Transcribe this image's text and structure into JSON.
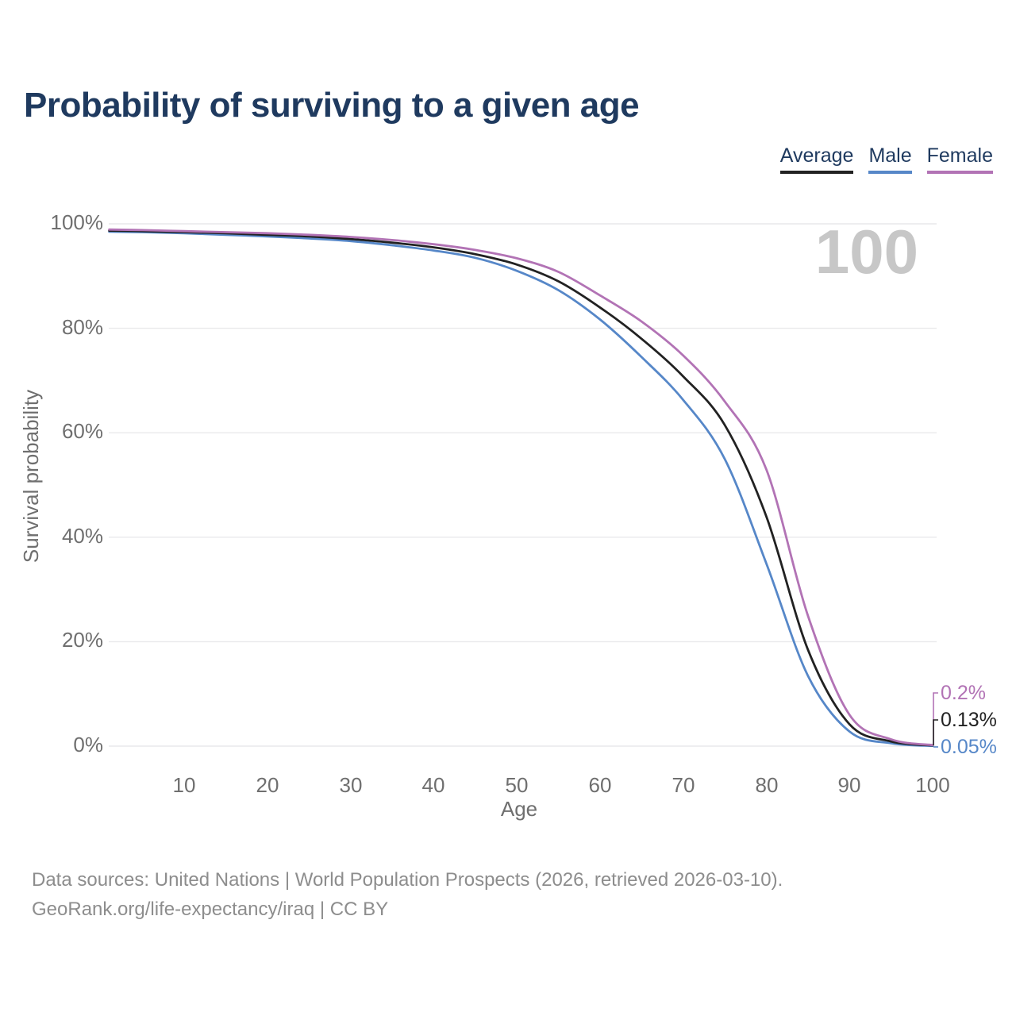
{
  "watermark": "100",
  "footer": {
    "line1": "Data sources: United Nations | World Population Prospects (2026, retrieved 2026-03-10).",
    "line2": "GeoRank.org/life-expectancy/iraq | CC BY"
  },
  "chart_data": {
    "type": "line",
    "title": "Probability of surviving to a given age",
    "xlabel": "Age",
    "ylabel": "Survival probability",
    "xlim": [
      1,
      100
    ],
    "ylim": [
      0,
      100
    ],
    "grid": true,
    "legend_position": "top-right",
    "x": [
      1,
      5,
      10,
      15,
      20,
      25,
      30,
      35,
      40,
      45,
      50,
      55,
      60,
      65,
      70,
      75,
      80,
      85,
      90,
      95,
      100
    ],
    "series": [
      {
        "name": "Average",
        "color": "#222222",
        "end_label": "0.13%",
        "values": [
          98.7,
          98.6,
          98.4,
          98.2,
          97.9,
          97.6,
          97.1,
          96.4,
          95.5,
          94.2,
          92.2,
          89.0,
          84.0,
          78.0,
          70.8,
          61.5,
          44.0,
          18.5,
          4.2,
          0.9,
          0.13
        ]
      },
      {
        "name": "Male",
        "color": "#5687c8",
        "end_label": "0.05%",
        "values": [
          98.5,
          98.4,
          98.2,
          97.9,
          97.6,
          97.2,
          96.7,
          95.9,
          94.9,
          93.5,
          91.0,
          87.3,
          81.7,
          74.5,
          66.3,
          55.0,
          35.0,
          13.5,
          2.8,
          0.55,
          0.05
        ]
      },
      {
        "name": "Female",
        "color": "#b273b5",
        "end_label": "0.2%",
        "values": [
          98.9,
          98.8,
          98.6,
          98.4,
          98.2,
          97.9,
          97.5,
          96.9,
          96.1,
          95.0,
          93.4,
          90.8,
          86.3,
          81.3,
          74.8,
          66.0,
          53.0,
          25.0,
          6.0,
          1.3,
          0.2
        ]
      }
    ],
    "xtick_labels": [
      "10",
      "20",
      "30",
      "40",
      "50",
      "60",
      "70",
      "80",
      "90",
      "100"
    ],
    "ytick_labels": [
      "100%",
      "80%",
      "60%",
      "40%",
      "20%",
      "0%"
    ]
  }
}
